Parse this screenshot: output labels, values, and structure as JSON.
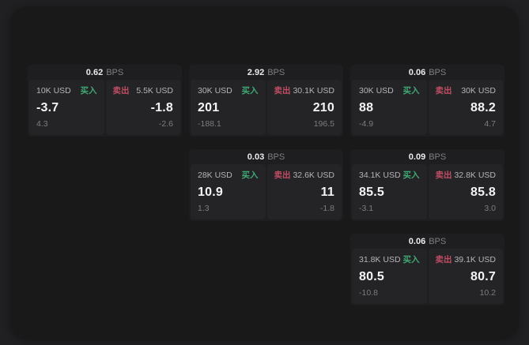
{
  "labels": {
    "bps_unit": "BPS",
    "buy": "买入",
    "sell": "卖出"
  },
  "colors": {
    "buy": "#3fa973",
    "sell": "#bf4d63",
    "panel_bg": "#19191a",
    "card_bg": "#1e1e20",
    "pane_bg": "#242427"
  },
  "cards": [
    {
      "bps": "0.62",
      "col": 1,
      "row": 1,
      "buy": {
        "amount": "10K USD",
        "value": "-3.7",
        "sub": "4.3"
      },
      "sell": {
        "amount": "5.5K USD",
        "value": "-1.8",
        "sub": "-2.6"
      }
    },
    {
      "bps": "2.92",
      "col": 2,
      "row": 1,
      "buy": {
        "amount": "30K USD",
        "value": "201",
        "sub": "-188.1"
      },
      "sell": {
        "amount": "30.1K USD",
        "value": "210",
        "sub": "196.5"
      }
    },
    {
      "bps": "0.06",
      "col": 3,
      "row": 1,
      "buy": {
        "amount": "30K USD",
        "value": "88",
        "sub": "-4.9"
      },
      "sell": {
        "amount": "30K USD",
        "value": "88.2",
        "sub": "4.7"
      }
    },
    {
      "bps": "0.03",
      "col": 2,
      "row": 2,
      "buy": {
        "amount": "28K USD",
        "value": "10.9",
        "sub": "1.3"
      },
      "sell": {
        "amount": "32.6K USD",
        "value": "11",
        "sub": "-1.8"
      }
    },
    {
      "bps": "0.09",
      "col": 3,
      "row": 2,
      "buy": {
        "amount": "34.1K USD",
        "value": "85.5",
        "sub": "-3.1"
      },
      "sell": {
        "amount": "32.8K USD",
        "value": "85.8",
        "sub": "3.0"
      }
    },
    {
      "bps": "0.06",
      "col": 3,
      "row": 3,
      "buy": {
        "amount": "31.8K USD",
        "value": "80.5",
        "sub": "-10.8"
      },
      "sell": {
        "amount": "39.1K USD",
        "value": "80.7",
        "sub": "10.2"
      }
    }
  ]
}
